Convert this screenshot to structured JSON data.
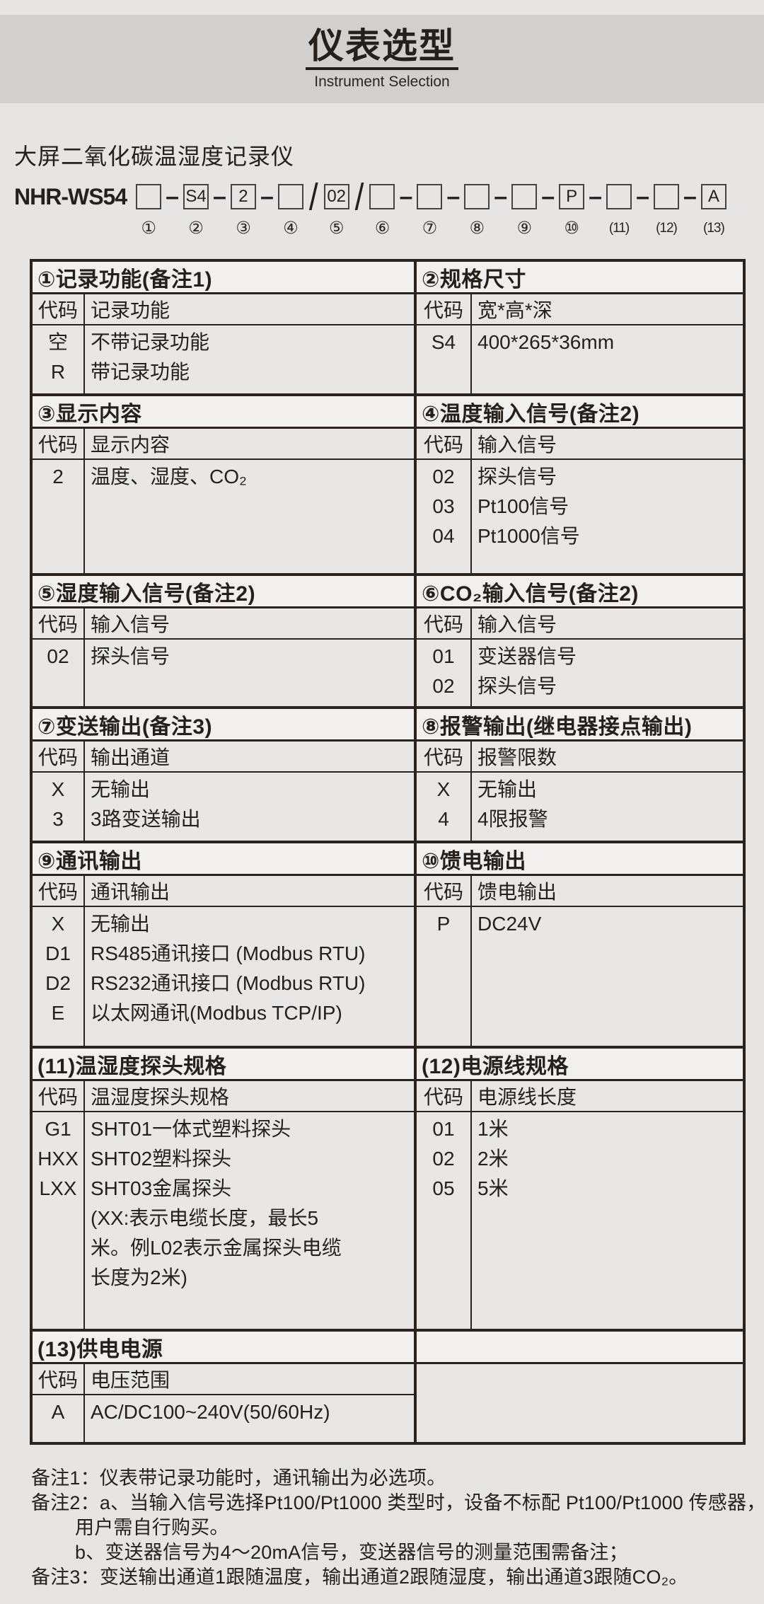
{
  "banner": {
    "title": "仪表选型",
    "subtitle": "Instrument Selection"
  },
  "product_title": "大屏二氧化碳温湿度记录仪",
  "model": {
    "prefix": "NHR-WS54",
    "slots": [
      {
        "num": "①",
        "value": ""
      },
      {
        "num": "②",
        "value": "S4"
      },
      {
        "num": "③",
        "value": "2"
      },
      {
        "num": "④",
        "value": ""
      },
      {
        "num": "⑤",
        "value": "02"
      },
      {
        "num": "⑥",
        "value": ""
      },
      {
        "num": "⑦",
        "value": ""
      },
      {
        "num": "⑧",
        "value": ""
      },
      {
        "num": "⑨",
        "value": ""
      },
      {
        "num": "⑩",
        "value": "P"
      },
      {
        "num": "(11)",
        "value": ""
      },
      {
        "num": "(12)",
        "value": ""
      },
      {
        "num": "(13)",
        "value": "A"
      }
    ],
    "separators": [
      "–",
      "–",
      "–",
      "/",
      "/",
      "–",
      "–",
      "–",
      "–",
      "–",
      "–",
      "–"
    ]
  },
  "bands": [
    {
      "left": {
        "id": "record-function",
        "header": "①记录功能(备注1)",
        "code_label": "代码",
        "desc_label": "记录功能",
        "rows": [
          {
            "code": "空",
            "desc": "不带记录功能"
          },
          {
            "code": "R",
            "desc": "带记录功能"
          }
        ]
      },
      "right": {
        "id": "dimensions",
        "header": "②规格尺寸",
        "code_label": "代码",
        "desc_label": "宽*高*深",
        "rows": [
          {
            "code": "S4",
            "desc": "400*265*36mm"
          }
        ]
      }
    },
    {
      "left": {
        "id": "display-content",
        "header": "③显示内容",
        "code_label": "代码",
        "desc_label": "显示内容",
        "rows": [
          {
            "code": "2",
            "desc": "温度、湿度、CO₂"
          }
        ]
      },
      "right": {
        "id": "temperature-input-signal",
        "header": "④温度输入信号(备注2)",
        "code_label": "代码",
        "desc_label": "输入信号",
        "rows": [
          {
            "code": "02",
            "desc": "探头信号"
          },
          {
            "code": "03",
            "desc": "Pt100信号"
          },
          {
            "code": "04",
            "desc": "Pt1000信号"
          }
        ]
      }
    },
    {
      "left": {
        "id": "humidity-input-signal",
        "header": "⑤湿度输入信号(备注2)",
        "code_label": "代码",
        "desc_label": "输入信号",
        "rows": [
          {
            "code": "02",
            "desc": "探头信号"
          }
        ]
      },
      "right": {
        "id": "co2-input-signal",
        "header": "⑥CO₂输入信号(备注2)",
        "code_label": "代码",
        "desc_label": "输入信号",
        "rows": [
          {
            "code": "01",
            "desc": "变送器信号"
          },
          {
            "code": "02",
            "desc": "探头信号"
          }
        ]
      }
    },
    {
      "left": {
        "id": "transmit-output",
        "header": "⑦变送输出(备注3)",
        "code_label": "代码",
        "desc_label": "输出通道",
        "rows": [
          {
            "code": "X",
            "desc": "无输出"
          },
          {
            "code": "3",
            "desc": "3路变送输出"
          }
        ]
      },
      "right": {
        "id": "alarm-output",
        "header": "⑧报警输出(继电器接点输出)",
        "code_label": "代码",
        "desc_label": "报警限数",
        "rows": [
          {
            "code": "X",
            "desc": "无输出"
          },
          {
            "code": "4",
            "desc": "4限报警"
          }
        ]
      }
    },
    {
      "left": {
        "id": "communication-output",
        "header": "⑨通讯输出",
        "code_label": "代码",
        "desc_label": "通讯输出",
        "rows": [
          {
            "code": "X",
            "desc": "无输出"
          },
          {
            "code": "D1",
            "desc": "RS485通讯接口 (Modbus RTU)"
          },
          {
            "code": "D2",
            "desc": "RS232通讯接口 (Modbus RTU)"
          },
          {
            "code": "E",
            "desc": "以太网通讯(Modbus TCP/IP)"
          }
        ]
      },
      "right": {
        "id": "feed-power-output",
        "header": "⑩馈电输出",
        "code_label": "代码",
        "desc_label": "馈电输出",
        "rows": [
          {
            "code": "P",
            "desc": "DC24V"
          }
        ]
      }
    },
    {
      "left": {
        "id": "probe-spec",
        "header": "(11)温湿度探头规格",
        "code_label": "代码",
        "desc_label": "温湿度探头规格",
        "rows": [
          {
            "code": "G1",
            "desc": "SHT01一体式塑料探头"
          },
          {
            "code": "HXX",
            "desc": "SHT02塑料探头"
          },
          {
            "code": "LXX",
            "desc": "SHT03金属探头"
          },
          {
            "code": "",
            "desc": "(XX:表示电缆长度，最长5"
          },
          {
            "code": "",
            "desc": "米。例L02表示金属探头电缆"
          },
          {
            "code": "",
            "desc": "长度为2米)"
          }
        ]
      },
      "right": {
        "id": "power-cord-spec",
        "header": "(12)电源线规格",
        "code_label": "代码",
        "desc_label": "电源线长度",
        "rows": [
          {
            "code": "01",
            "desc": "1米"
          },
          {
            "code": "02",
            "desc": "2米"
          },
          {
            "code": "05",
            "desc": "5米"
          }
        ]
      }
    },
    {
      "left": {
        "id": "power-supply",
        "header": "(13)供电电源",
        "code_label": "代码",
        "desc_label": "电压范围",
        "rows": [
          {
            "code": "A",
            "desc": "AC/DC100~240V(50/60Hz)"
          }
        ]
      },
      "right": null
    }
  ],
  "notes": [
    {
      "text": "备注1：仪表带记录功能时，通讯输出为必选项。",
      "indent": false
    },
    {
      "text": "备注2：a、当输入信号选择Pt100/Pt1000 类型时，设备不标配 Pt100/Pt1000 传感器，",
      "indent": false
    },
    {
      "text": "用户需自行购买。",
      "indent": true
    },
    {
      "text": "b、变送器信号为4～20mA信号，变送器信号的测量范围需备注；",
      "indent": true
    },
    {
      "text": "备注3：变送输出通道1跟随温度，输出通道2跟随湿度，输出通道3跟随CO₂。",
      "indent": false
    }
  ],
  "colors": {
    "banner_bg": "#d1d0cf",
    "page_bg": "#e7e5e3",
    "header_row_bg": "#f2f0ee",
    "cell_bg": "#e9e7e5",
    "border": "#2b211d",
    "text": "#25201c"
  }
}
